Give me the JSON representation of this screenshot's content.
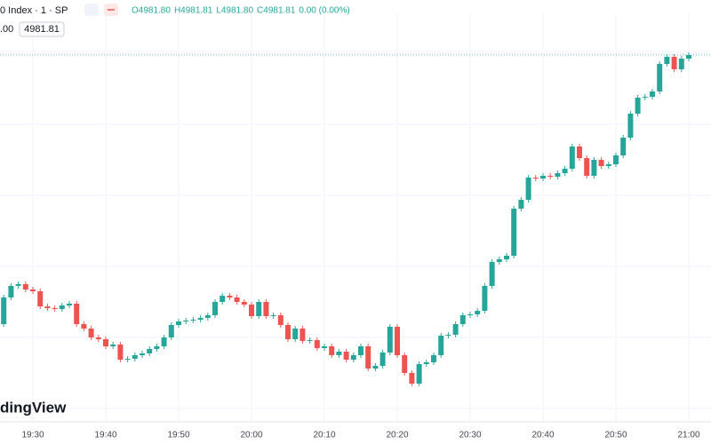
{
  "chart_data": {
    "type": "candlestick",
    "symbol_title": "0 Index · 1 · SP",
    "ohlc_legend": [
      "O4981.80",
      "H4981.81",
      "L4981.80",
      "C4981.81",
      "0.00 (0.00%)"
    ],
    "scale_fragment": ".00",
    "last_price": {
      "value": 4981.81,
      "label": "4981.81"
    },
    "logo": "dingView",
    "up_color": "#26a69a",
    "down_color": "#ef5350",
    "grid": true,
    "ylim": [
      4941,
      4986
    ],
    "categories": [
      null,
      null,
      null,
      null,
      "19:30",
      null,
      null,
      null,
      null,
      null,
      null,
      null,
      null,
      null,
      "19:40",
      null,
      null,
      null,
      null,
      null,
      null,
      null,
      null,
      null,
      "19:50",
      null,
      null,
      null,
      null,
      null,
      null,
      null,
      null,
      null,
      "20:00",
      null,
      null,
      null,
      null,
      null,
      null,
      null,
      null,
      null,
      "20:10",
      null,
      null,
      null,
      null,
      null,
      null,
      null,
      null,
      null,
      "20:20",
      null,
      null,
      null,
      null,
      null,
      null,
      null,
      null,
      null,
      "20:30",
      null,
      null,
      null,
      null,
      null,
      null,
      null,
      null,
      null,
      "20:40",
      null,
      null,
      null,
      null,
      null,
      null,
      null,
      null,
      null,
      "20:50",
      null,
      null,
      null,
      null,
      null,
      null,
      null,
      null,
      null,
      "21:00"
    ],
    "open": [
      4951.5,
      4954.5,
      4955.8,
      4956.0,
      4955.4,
      4955.2,
      4953.5,
      4953.3,
      4953.2,
      4953.6,
      4953.8,
      4951.5,
      4951.0,
      4950.0,
      4949.8,
      4949.0,
      4949.2,
      4947.5,
      4947.6,
      4948.0,
      4948.2,
      4948.7,
      4949.0,
      4950.0,
      4951.4,
      4951.8,
      4951.9,
      4952.0,
      4952.2,
      4952.5,
      4954.0,
      4954.7,
      4954.5,
      4954.0,
      4953.7,
      4952.4,
      4954.0,
      4952.4,
      4952.5,
      4951.4,
      4949.8,
      4951.0,
      4949.6,
      4949.7,
      4948.8,
      4949.0,
      4948.0,
      4948.4,
      4947.5,
      4948.0,
      4949.0,
      4946.5,
      4946.8,
      4948.3,
      4951.2,
      4948.0,
      4946.0,
      4944.8,
      4947.0,
      4947.2,
      4948.0,
      4950.2,
      4950.3,
      4951.5,
      4952.5,
      4952.6,
      4953.0,
      4955.8,
      4958.5,
      4958.8,
      4959.2,
      4964.5,
      4965.5,
      4968.0,
      4967.9,
      4968.2,
      4968.1,
      4968.5,
      4969.0,
      4971.5,
      4970.2,
      4968.2,
      4970.0,
      4969.3,
      4969.5,
      4970.5,
      4972.5,
      4975.2,
      4977.0,
      4977.1,
      4977.7,
      4980.8,
      4981.6,
      4980.2,
      4981.4
    ],
    "high": [
      4954.8,
      4956.1,
      4956.3,
      4956.3,
      4955.7,
      4955.5,
      4953.8,
      4953.6,
      4953.9,
      4954.1,
      4954.1,
      4951.8,
      4951.3,
      4950.3,
      4950.1,
      4949.5,
      4949.5,
      4947.9,
      4948.3,
      4948.5,
      4949.0,
      4949.3,
      4950.3,
      4951.7,
      4952.1,
      4952.2,
      4952.3,
      4952.5,
      4952.8,
      4954.3,
      4955.0,
      4955.0,
      4954.8,
      4954.3,
      4954.0,
      4954.3,
      4954.3,
      4952.8,
      4952.8,
      4951.7,
      4951.3,
      4951.3,
      4950.0,
      4950.0,
      4949.3,
      4949.3,
      4948.7,
      4948.7,
      4948.3,
      4949.3,
      4949.3,
      4947.1,
      4948.6,
      4951.5,
      4951.5,
      4948.3,
      4946.3,
      4947.3,
      4947.5,
      4948.3,
      4950.5,
      4950.6,
      4951.8,
      4952.8,
      4952.9,
      4953.3,
      4956.1,
      4958.8,
      4959.1,
      4959.5,
      4964.8,
      4965.8,
      4968.3,
      4968.3,
      4968.5,
      4968.5,
      4968.8,
      4969.3,
      4971.8,
      4971.8,
      4970.5,
      4970.3,
      4970.3,
      4969.8,
      4970.8,
      4972.8,
      4975.5,
      4977.3,
      4977.4,
      4978.0,
      4981.1,
      4981.9,
      4981.9,
      4981.7,
      4982.1
    ],
    "low": [
      4951.2,
      4954.2,
      4955.5,
      4955.1,
      4954.9,
      4953.2,
      4953.0,
      4952.9,
      4952.9,
      4953.3,
      4951.2,
      4950.7,
      4949.7,
      4949.5,
      4948.7,
      4948.7,
      4947.2,
      4947.2,
      4947.3,
      4947.7,
      4947.9,
      4948.4,
      4948.7,
      4949.7,
      4951.1,
      4951.5,
      4951.6,
      4951.7,
      4951.9,
      4952.2,
      4953.7,
      4954.2,
      4953.7,
      4953.4,
      4952.1,
      4952.1,
      4952.1,
      4952.1,
      4951.1,
      4949.5,
      4949.5,
      4949.3,
      4949.3,
      4948.5,
      4948.5,
      4947.7,
      4947.7,
      4947.2,
      4947.2,
      4947.7,
      4946.2,
      4946.2,
      4946.5,
      4948.0,
      4947.7,
      4945.7,
      4944.5,
      4944.5,
      4946.7,
      4946.9,
      4947.7,
      4949.9,
      4950.0,
      4951.2,
      4952.2,
      4952.3,
      4952.7,
      4955.5,
      4958.2,
      4958.5,
      4958.9,
      4964.2,
      4965.2,
      4967.6,
      4967.6,
      4967.8,
      4967.8,
      4968.2,
      4968.7,
      4969.9,
      4967.9,
      4967.9,
      4969.0,
      4969.0,
      4969.2,
      4970.2,
      4972.2,
      4974.9,
      4976.7,
      4976.8,
      4977.4,
      4980.5,
      4979.9,
      4979.9,
      4981.1
    ],
    "close": [
      4954.5,
      4955.8,
      4956.0,
      4955.4,
      4955.2,
      4953.5,
      4953.3,
      4953.2,
      4953.6,
      4953.8,
      4951.5,
      4951.0,
      4950.0,
      4949.8,
      4949.0,
      4949.2,
      4947.5,
      4947.6,
      4948.0,
      4948.2,
      4948.7,
      4949.0,
      4950.0,
      4951.4,
      4951.8,
      4951.9,
      4952.0,
      4952.2,
      4952.5,
      4954.0,
      4954.7,
      4954.5,
      4954.0,
      4953.7,
      4952.4,
      4954.0,
      4952.4,
      4952.5,
      4951.4,
      4949.8,
      4951.0,
      4949.6,
      4949.7,
      4948.8,
      4949.0,
      4948.0,
      4948.4,
      4947.5,
      4948.0,
      4949.0,
      4946.5,
      4946.8,
      4948.3,
      4951.2,
      4948.0,
      4946.0,
      4944.8,
      4947.0,
      4947.2,
      4948.0,
      4950.2,
      4950.3,
      4951.5,
      4952.5,
      4952.6,
      4953.0,
      4955.8,
      4958.5,
      4958.8,
      4959.2,
      4964.5,
      4965.5,
      4968.0,
      4967.9,
      4968.2,
      4968.1,
      4968.5,
      4969.0,
      4971.5,
      4970.2,
      4968.2,
      4970.0,
      4969.3,
      4969.5,
      4970.5,
      4972.5,
      4975.2,
      4977.0,
      4977.1,
      4977.7,
      4980.8,
      4981.6,
      4980.2,
      4981.4,
      4981.8
    ]
  }
}
